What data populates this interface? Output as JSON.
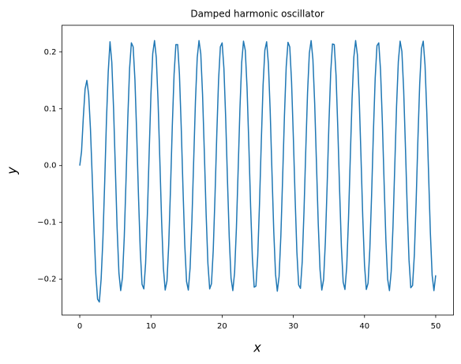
{
  "chart_data": {
    "type": "line",
    "title": "Damped harmonic oscillator",
    "xlabel": "x",
    "ylabel": "y",
    "x": [
      0,
      0.25,
      0.5,
      0.75,
      1,
      1.25,
      1.5,
      1.75,
      2,
      2.25,
      2.5,
      2.75,
      3,
      3.25,
      3.5,
      3.75,
      4,
      4.25,
      4.5,
      4.75,
      5,
      5.25,
      5.5,
      5.75,
      6,
      6.25,
      6.5,
      6.75,
      7,
      7.25,
      7.5,
      7.75,
      8,
      8.25,
      8.5,
      8.75,
      9,
      9.25,
      9.5,
      9.75,
      10,
      10.25,
      10.5,
      10.75,
      11,
      11.25,
      11.5,
      11.75,
      12,
      12.25,
      12.5,
      12.75,
      13,
      13.25,
      13.5,
      13.75,
      14,
      14.25,
      14.5,
      14.75,
      15,
      15.25,
      15.5,
      15.75,
      16,
      16.25,
      16.5,
      16.75,
      17,
      17.25,
      17.5,
      17.75,
      18,
      18.25,
      18.5,
      18.75,
      19,
      19.25,
      19.5,
      19.75,
      20,
      20.25,
      20.5,
      20.75,
      21,
      21.25,
      21.5,
      21.75,
      22,
      22.25,
      22.5,
      22.75,
      23,
      23.25,
      23.5,
      23.75,
      24,
      24.25,
      24.5,
      24.75,
      25,
      25.25,
      25.5,
      25.75,
      26,
      26.25,
      26.5,
      26.75,
      27,
      27.25,
      27.5,
      27.75,
      28,
      28.25,
      28.5,
      28.75,
      29,
      29.25,
      29.5,
      29.75,
      30,
      30.25,
      30.5,
      30.75,
      31,
      31.25,
      31.5,
      31.75,
      32,
      32.25,
      32.5,
      32.75,
      33,
      33.25,
      33.5,
      33.75,
      34,
      34.25,
      34.5,
      34.75,
      35,
      35.25,
      35.5,
      35.75,
      36,
      36.25,
      36.5,
      36.75,
      37,
      37.25,
      37.5,
      37.75,
      38,
      38.25,
      38.5,
      38.75,
      39,
      39.25,
      39.5,
      39.75,
      40,
      40.25,
      40.5,
      40.75,
      41,
      41.25,
      41.5,
      41.75,
      42,
      42.25,
      42.5,
      42.75,
      43,
      43.25,
      43.5,
      43.75,
      44,
      44.25,
      44.5,
      44.75,
      45,
      45.25,
      45.5,
      45.75,
      46,
      46.25,
      46.5,
      46.75,
      47,
      47.25,
      47.5,
      47.75,
      48,
      48.25,
      48.5,
      48.75,
      49,
      49.25,
      49.5,
      49.75,
      50
    ],
    "series": [
      {
        "name": "y",
        "color": "#1f77b4",
        "values": [
          0,
          0.025,
          0.085,
          0.135,
          0.15,
          0.125,
          0.065,
          -0.02,
          -0.11,
          -0.19,
          -0.235,
          -0.24,
          -0.2,
          -0.13,
          -0.03,
          0.08,
          0.165,
          0.218,
          0.182,
          0.1,
          -0.006,
          -0.111,
          -0.189,
          -0.22,
          -0.197,
          -0.126,
          -0.025,
          0.084,
          0.171,
          0.216,
          0.209,
          0.151,
          0.055,
          -0.054,
          -0.15,
          -0.209,
          -0.217,
          -0.172,
          -0.085,
          0.023,
          0.126,
          0.197,
          0.22,
          0.19,
          0.113,
          0.009,
          -0.098,
          -0.181,
          -0.219,
          -0.203,
          -0.138,
          -0.039,
          0.07,
          0.161,
          0.213,
          0.213,
          0.161,
          0.069,
          -0.04,
          -0.139,
          -0.204,
          -0.219,
          -0.18,
          -0.098,
          0.008,
          0.113,
          0.19,
          0.22,
          0.197,
          0.125,
          0.023,
          -0.085,
          -0.172,
          -0.217,
          -0.208,
          -0.149,
          -0.053,
          0.056,
          0.151,
          0.209,
          0.216,
          0.171,
          0.083,
          -0.026,
          -0.127,
          -0.198,
          -0.22,
          -0.188,
          -0.111,
          -0.007,
          0.1,
          0.182,
          0.219,
          0.203,
          0.137,
          0.037,
          -0.072,
          -0.163,
          -0.214,
          -0.212,
          -0.159,
          -0.067,
          0.042,
          0.141,
          0.203,
          0.218,
          0.179,
          0.096,
          -0.012,
          -0.115,
          -0.191,
          -0.221,
          -0.195,
          -0.123,
          -0.021,
          0.087,
          0.174,
          0.217,
          0.209,
          0.148,
          0.051,
          -0.057,
          -0.152,
          -0.21,
          -0.216,
          -0.169,
          -0.08,
          0.028,
          0.129,
          0.198,
          0.22,
          0.187,
          0.109,
          0.004,
          -0.102,
          -0.183,
          -0.219,
          -0.201,
          -0.134,
          -0.035,
          0.074,
          0.164,
          0.214,
          0.213,
          0.159,
          0.065,
          -0.043,
          -0.142,
          -0.205,
          -0.218,
          -0.178,
          -0.094,
          0.014,
          0.117,
          0.191,
          0.22,
          0.195,
          0.121,
          0.018,
          -0.09,
          -0.175,
          -0.218,
          -0.207,
          -0.146,
          -0.05,
          0.06,
          0.154,
          0.211,
          0.216,
          0.168,
          0.079,
          -0.029,
          -0.13,
          -0.2,
          -0.22,
          -0.186,
          -0.107,
          -0.001,
          0.104,
          0.183,
          0.219,
          0.201,
          0.133,
          0.032,
          -0.076,
          -0.166,
          -0.215,
          -0.211,
          -0.157,
          -0.064,
          0.046,
          0.143,
          0.206,
          0.219,
          0.177,
          0.093,
          -0.015,
          -0.118,
          -0.193,
          -0.22,
          -0.193
        ]
      }
    ],
    "xlim": [
      -2.5,
      52.5
    ],
    "xticks": [
      0,
      10,
      20,
      30,
      40,
      50
    ],
    "ylim": [
      -0.263,
      0.247
    ],
    "yticks": [
      {
        "value": -0.2,
        "label": "−0.2"
      },
      {
        "value": -0.1,
        "label": "−0.1"
      },
      {
        "value": 0,
        "label": "0.0"
      },
      {
        "value": 0.1,
        "label": "0.1"
      },
      {
        "value": 0.2,
        "label": "0.2"
      }
    ],
    "grid": false
  }
}
